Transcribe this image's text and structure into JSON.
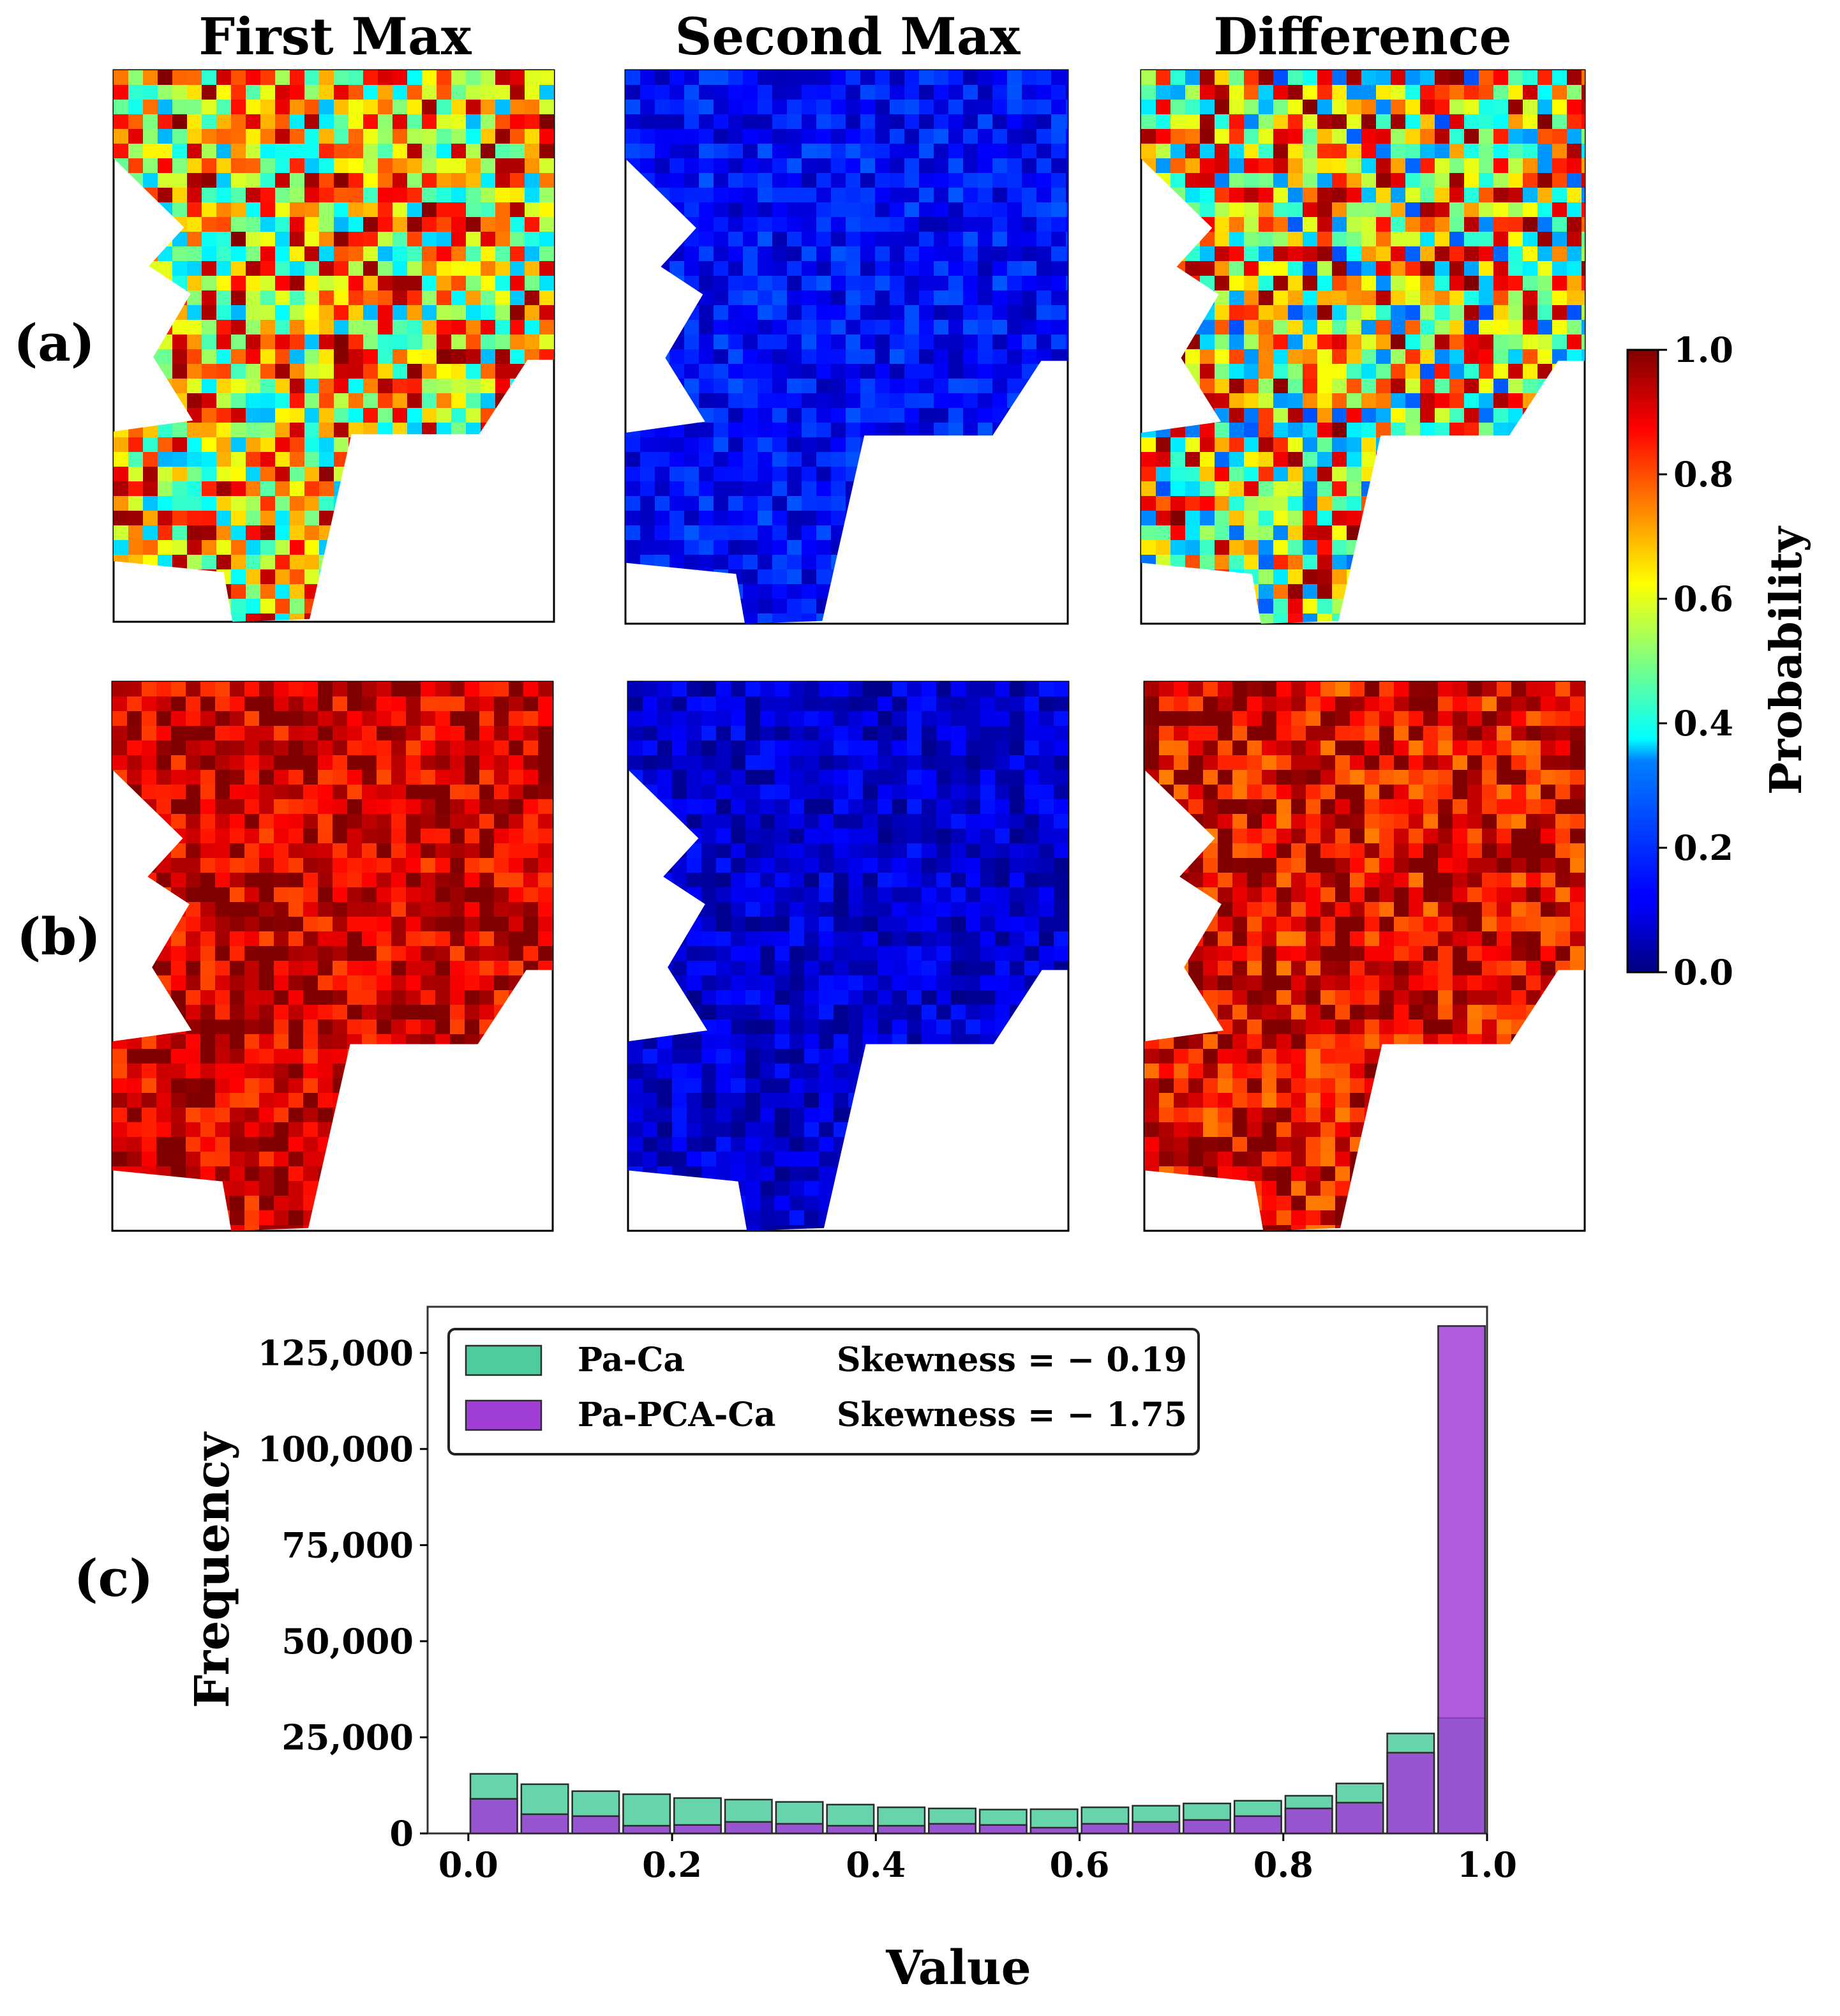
{
  "column_titles": [
    "First Max",
    "Second Max",
    "Difference"
  ],
  "row_labels": [
    "(a)",
    "(b)"
  ],
  "panel_c_label": "(c)",
  "colorbar": {
    "label": "Probability",
    "ticks": [
      "1.0",
      "0.8",
      "0.6",
      "0.4",
      "0.2",
      "0.0"
    ],
    "colormap": "jet",
    "range": [
      0.0,
      1.0
    ]
  },
  "maps": [
    {
      "row": "(a)",
      "column": "First Max",
      "dominant_level": 0.65,
      "variability": 0.35
    },
    {
      "row": "(a)",
      "column": "Second Max",
      "dominant_level": 0.13,
      "variability": 0.08
    },
    {
      "row": "(a)",
      "column": "Difference",
      "dominant_level": 0.6,
      "variability": 0.4
    },
    {
      "row": "(b)",
      "column": "First Max",
      "dominant_level": 0.92,
      "variability": 0.12
    },
    {
      "row": "(b)",
      "column": "Second Max",
      "dominant_level": 0.08,
      "variability": 0.07
    },
    {
      "row": "(b)",
      "column": "Difference",
      "dominant_level": 0.9,
      "variability": 0.15
    }
  ],
  "chart_data": {
    "type": "bar",
    "xlabel": "Value",
    "ylabel": "Frequency",
    "xlim": [
      -0.04,
      1.0
    ],
    "ylim": [
      0,
      137000
    ],
    "x_ticks": [
      "0.0",
      "0.2",
      "0.4",
      "0.6",
      "0.8",
      "1.0"
    ],
    "y_ticks": [
      "0",
      "25,000",
      "50,000",
      "75,000",
      "100,000",
      "125,000"
    ],
    "legend_position": "top-left",
    "bin_edges": [
      0.0,
      0.05,
      0.1,
      0.15,
      0.2,
      0.25,
      0.3,
      0.35,
      0.4,
      0.45,
      0.5,
      0.55,
      0.6,
      0.65,
      0.7,
      0.75,
      0.8,
      0.85,
      0.9,
      0.95,
      1.0
    ],
    "series": [
      {
        "name": "Pa-Ca",
        "color": "#4dcc9e",
        "skewness_text": "Skewness = − 0.19",
        "values": [
          15500,
          12800,
          11000,
          10200,
          9200,
          8800,
          8200,
          7500,
          6800,
          6500,
          6200,
          6300,
          6800,
          7200,
          7800,
          8500,
          9800,
          13000,
          26000,
          30000
        ]
      },
      {
        "name": "Pa-PCA-Ca",
        "color": "#a03ed6",
        "skewness_text": "Skewness = − 1.75",
        "values": [
          9000,
          5000,
          4500,
          2000,
          2200,
          3000,
          2500,
          2000,
          2000,
          2500,
          2200,
          1500,
          2500,
          3000,
          3500,
          4500,
          6500,
          8000,
          21000,
          132000
        ]
      }
    ]
  }
}
